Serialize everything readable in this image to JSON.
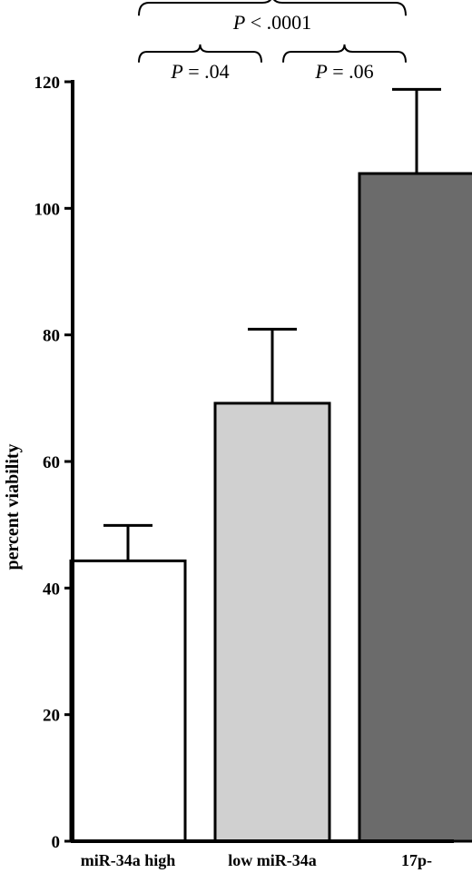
{
  "chart_data": {
    "type": "bar",
    "title": "",
    "xlabel": "",
    "ylabel": "percent viability",
    "ylim": [
      0,
      120
    ],
    "yticks": [
      0,
      20,
      40,
      60,
      80,
      100,
      120
    ],
    "grid": false,
    "categories": [
      "miR-34a high",
      "low miR-34a",
      "17p-"
    ],
    "values": [
      44.3,
      69.2,
      105.5
    ],
    "errors": [
      5.6,
      11.7,
      13.3
    ],
    "colors": [
      "#ffffff",
      "#d0d0d0",
      "#6b6b6b"
    ],
    "annotations": [
      {
        "from": 0,
        "to": 1,
        "p_symbol": "P",
        "p_text": " = .04"
      },
      {
        "from": 1,
        "to": 2,
        "p_symbol": "P",
        "p_text": " = .06"
      },
      {
        "from": 0,
        "to": 2,
        "p_symbol": "P",
        "p_text": " < .0001"
      }
    ]
  }
}
